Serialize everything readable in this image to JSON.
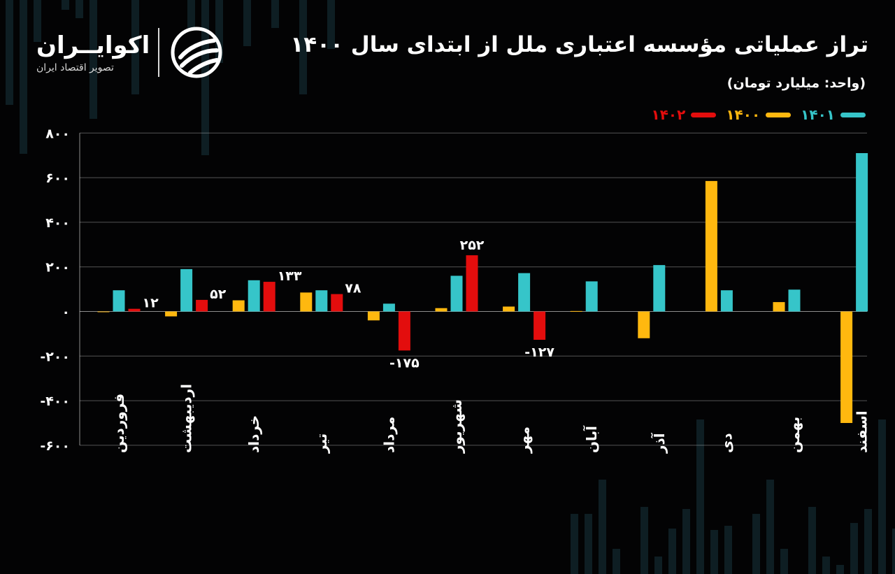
{
  "header": {
    "title": "تراز عملیاتی مؤسسه اعتباری ملل از ابتدای سال ۱۴۰۰",
    "unit": "(واحد: میلیارد تومان)"
  },
  "logo": {
    "name": "اکوایــران",
    "tagline": "تصویر اقتصاد ایران"
  },
  "legend": {
    "items": [
      {
        "label": "۱۴۰۱",
        "color": "#36C5C9"
      },
      {
        "label": "۱۴۰۰",
        "color": "#FFB80F"
      },
      {
        "label": "۱۴۰۲",
        "color": "#E30D0D"
      }
    ]
  },
  "chart_data": {
    "type": "bar",
    "title": "تراز عملیاتی مؤسسه اعتباری ملل از ابتدای سال ۱۴۰۰",
    "ylabel": "(واحد: میلیارد تومان)",
    "ylim": [
      -600,
      800
    ],
    "yticks": [
      800,
      600,
      400,
      200,
      0,
      -200,
      -400,
      -600
    ],
    "ytick_labels": [
      "۸۰۰",
      "۶۰۰",
      "۴۰۰",
      "۲۰۰",
      "۰",
      "-۲۰۰",
      "-۴۰۰",
      "-۶۰۰"
    ],
    "grid": true,
    "legend_position": "top-right",
    "categories": [
      "فروردین",
      "اردیبهشت",
      "خرداد",
      "تیر",
      "مرداد",
      "شهریور",
      "مهر",
      "آبان",
      "آذر",
      "دی",
      "بهمن",
      "اسفند"
    ],
    "series": [
      {
        "name": "۱۴۰۰",
        "color": "#FFB80F",
        "values": [
          0,
          -22,
          50,
          85,
          -40,
          15,
          22,
          2,
          -120,
          585,
          42,
          -500
        ]
      },
      {
        "name": "۱۴۰۱",
        "color": "#36C5C9",
        "values": [
          95,
          190,
          140,
          95,
          35,
          160,
          172,
          135,
          208,
          95,
          98,
          710
        ]
      },
      {
        "name": "۱۴۰۲",
        "color": "#E30D0D",
        "values": [
          12,
          52,
          133,
          78,
          -175,
          252,
          -127,
          null,
          null,
          null,
          null,
          null
        ]
      }
    ],
    "data_labels": {
      "series": "۱۴۰۲",
      "labels": [
        "۱۲",
        "۵۲",
        "۱۳۳",
        "۷۸",
        "-۱۷۵",
        "۲۵۲",
        "-۱۲۷"
      ]
    }
  }
}
